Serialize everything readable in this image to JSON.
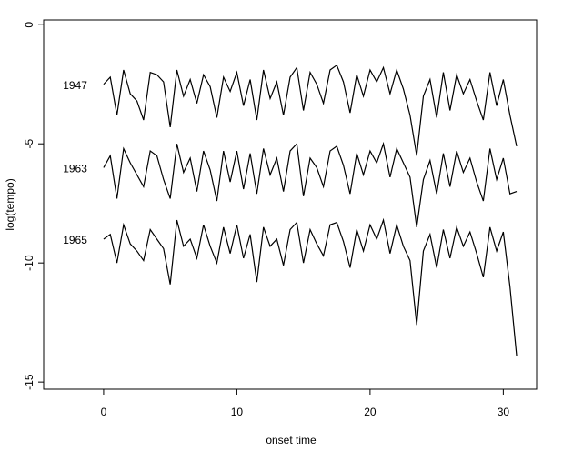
{
  "chart_data": {
    "type": "line",
    "xlabel": "onset time",
    "ylabel": "log(tempo)",
    "x": [
      0,
      0.5,
      1,
      1.5,
      2,
      2.5,
      3,
      3.5,
      4,
      4.5,
      5,
      5.5,
      6,
      6.5,
      7,
      7.5,
      8,
      8.5,
      9,
      9.5,
      10,
      10.5,
      11,
      11.5,
      12,
      12.5,
      13,
      13.5,
      14,
      14.5,
      15,
      15.5,
      16,
      16.5,
      17,
      17.5,
      18,
      18.5,
      19,
      19.5,
      20,
      20.5,
      21,
      21.5,
      22,
      22.5,
      23,
      23.5,
      24,
      24.5,
      25,
      25.5,
      26,
      26.5,
      27,
      27.5,
      28,
      28.5,
      29,
      29.5,
      30,
      30.5,
      31
    ],
    "series": [
      {
        "name": "1947",
        "color": "#000000",
        "values": [
          -2.5,
          -2.2,
          -3.8,
          -1.9,
          -2.9,
          -3.2,
          -4.0,
          -2.0,
          -2.1,
          -2.4,
          -4.3,
          -1.9,
          -3.0,
          -2.3,
          -3.3,
          -2.1,
          -2.6,
          -3.9,
          -2.2,
          -2.8,
          -2.0,
          -3.4,
          -2.3,
          -4.0,
          -1.9,
          -3.1,
          -2.4,
          -3.8,
          -2.2,
          -1.8,
          -3.6,
          -2.0,
          -2.5,
          -3.3,
          -1.9,
          -1.7,
          -2.4,
          -3.7,
          -2.1,
          -3.0,
          -1.9,
          -2.4,
          -1.8,
          -2.9,
          -1.9,
          -2.7,
          -3.8,
          -5.5,
          -3.0,
          -2.3,
          -3.9,
          -2.0,
          -3.6,
          -2.1,
          -2.9,
          -2.3,
          -3.2,
          -4.0,
          -2.0,
          -3.4,
          -2.3,
          -3.8,
          -5.1
        ]
      },
      {
        "name": "1963",
        "color": "#000000",
        "values": [
          -6.0,
          -5.5,
          -7.3,
          -5.2,
          -5.8,
          -6.3,
          -6.8,
          -5.3,
          -5.5,
          -6.5,
          -7.3,
          -5.0,
          -6.2,
          -5.6,
          -7.0,
          -5.3,
          -6.1,
          -7.4,
          -5.3,
          -6.6,
          -5.3,
          -6.9,
          -5.4,
          -7.1,
          -5.2,
          -6.3,
          -5.6,
          -7.0,
          -5.3,
          -5.0,
          -7.2,
          -5.6,
          -6.0,
          -6.8,
          -5.3,
          -5.1,
          -5.9,
          -7.1,
          -5.4,
          -6.3,
          -5.3,
          -5.8,
          -5.0,
          -6.4,
          -5.2,
          -5.8,
          -6.4,
          -8.5,
          -6.5,
          -5.7,
          -7.1,
          -5.4,
          -6.8,
          -5.3,
          -6.2,
          -5.6,
          -6.6,
          -7.4,
          -5.2,
          -6.5,
          -5.6,
          -7.1,
          -7.0
        ]
      },
      {
        "name": "1965",
        "color": "#000000",
        "values": [
          -9.0,
          -8.8,
          -10.0,
          -8.4,
          -9.2,
          -9.5,
          -9.9,
          -8.6,
          -9.0,
          -9.4,
          -10.9,
          -8.2,
          -9.3,
          -9.0,
          -9.8,
          -8.4,
          -9.3,
          -10.0,
          -8.5,
          -9.6,
          -8.4,
          -9.8,
          -8.8,
          -10.8,
          -8.5,
          -9.3,
          -9.0,
          -10.1,
          -8.6,
          -8.3,
          -10.0,
          -8.6,
          -9.2,
          -9.7,
          -8.4,
          -8.3,
          -9.1,
          -10.2,
          -8.6,
          -9.5,
          -8.4,
          -9.0,
          -8.2,
          -9.6,
          -8.4,
          -9.3,
          -9.9,
          -12.6,
          -9.5,
          -8.8,
          -10.2,
          -8.6,
          -9.8,
          -8.5,
          -9.3,
          -8.7,
          -9.6,
          -10.6,
          -8.5,
          -9.5,
          -8.7,
          -11.0,
          -13.9
        ]
      }
    ],
    "xlim": [
      -4.5,
      32.5
    ],
    "xticks": [
      0,
      10,
      20,
      30
    ],
    "ylim": [
      -15.3,
      0.2
    ],
    "yticks": [
      0,
      -5,
      -10,
      -15
    ]
  }
}
